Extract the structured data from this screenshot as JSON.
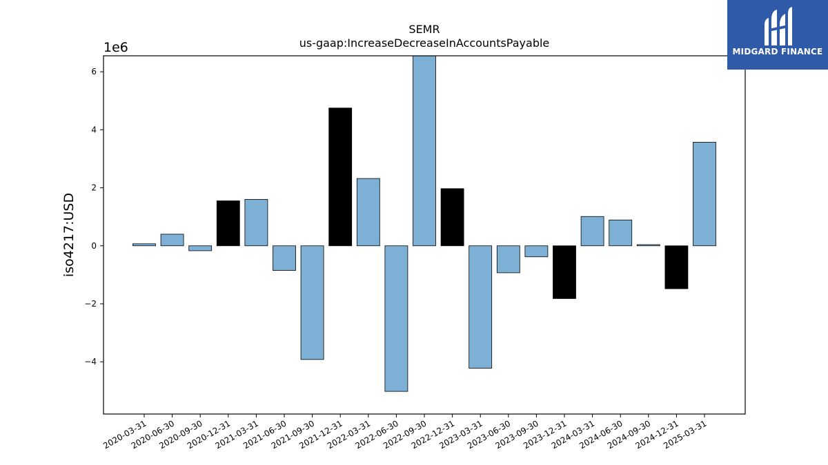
{
  "brand": {
    "name": "MIDGARD FINANCE",
    "logo_icon": "midgard-m-logo-icon",
    "background_color": "#2f5aa7"
  },
  "chart_data": {
    "type": "bar",
    "title": "SEMR",
    "subtitle": "us-gaap:IncreaseDecreaseInAccountsPayable",
    "ylabel": "iso4217:USD",
    "xlabel": "",
    "y_scale_label": "1e6",
    "y_scale_factor": 1000000,
    "ylim": [
      -5.8,
      6.55
    ],
    "yticks": [
      -4,
      -2,
      0,
      2,
      4,
      6
    ],
    "ytick_labels": [
      "−4",
      "−2",
      "0",
      "2",
      "4",
      "6"
    ],
    "grid": false,
    "legend": "none",
    "colors": {
      "quarterly": "#7eb0d5",
      "annual": "#000000",
      "edge": "#000000"
    },
    "categories": [
      "2020-03-31",
      "2020-06-30",
      "2020-09-30",
      "2020-12-31",
      "2021-03-31",
      "2021-06-30",
      "2021-09-30",
      "2021-12-31",
      "2022-03-31",
      "2022-06-30",
      "2022-09-30",
      "2022-12-31",
      "2023-03-31",
      "2023-06-30",
      "2023-09-30",
      "2023-12-31",
      "2024-03-31",
      "2024-06-30",
      "2024-09-30",
      "2024-12-31",
      "2025-03-31"
    ],
    "values": [
      0.07,
      0.4,
      -0.17,
      1.55,
      1.6,
      -0.85,
      -3.92,
      4.75,
      2.32,
      -5.02,
      6.7,
      1.97,
      -4.22,
      -0.93,
      -0.38,
      -1.82,
      1.01,
      0.89,
      0.04,
      -1.48,
      3.57
    ],
    "highlight": [
      false,
      false,
      false,
      true,
      false,
      false,
      false,
      true,
      false,
      false,
      false,
      true,
      false,
      false,
      false,
      true,
      false,
      false,
      false,
      true,
      false
    ]
  }
}
